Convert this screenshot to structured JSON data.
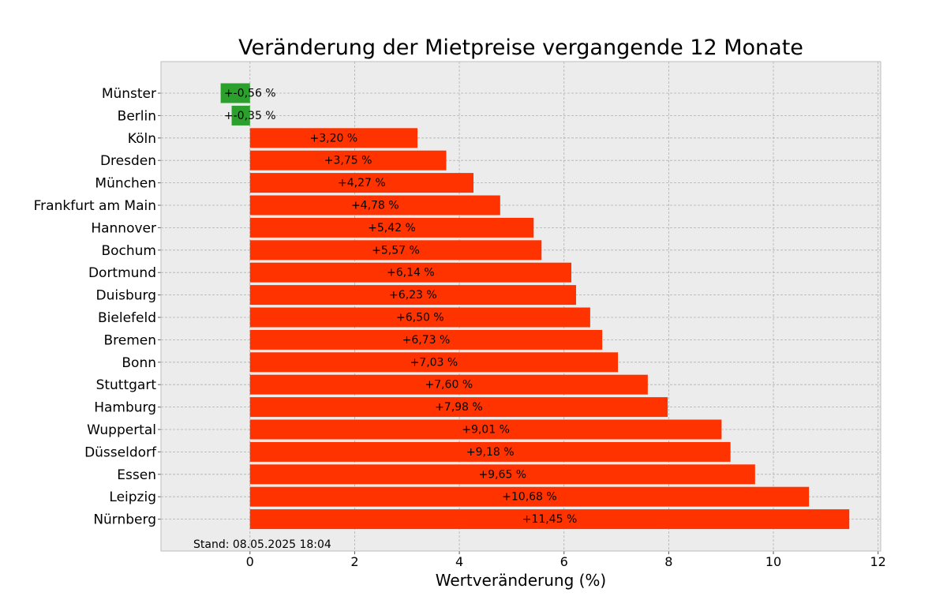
{
  "chart_data": {
    "type": "bar",
    "orientation": "horizontal",
    "title": "Veränderung der Mietpreise vergangende 12 Monate",
    "xlabel": "Wertveränderung (%)",
    "ylabel": "",
    "xlim": [
      -1.7,
      12.05
    ],
    "xticks": [
      0,
      2,
      4,
      6,
      8,
      10,
      12
    ],
    "grid": true,
    "footnote": "Stand: 08.05.2025 18:04",
    "colors": {
      "positive": "#ff3300",
      "negative": "#2ca02c",
      "plot_background": "#ececec",
      "grid": "#b0b0b0"
    },
    "bars": [
      {
        "category": "Münster",
        "value": -0.56,
        "label": "+-0,56 %"
      },
      {
        "category": "Berlin",
        "value": -0.35,
        "label": "+-0,35 %"
      },
      {
        "category": "Köln",
        "value": 3.2,
        "label": "+3,20 %"
      },
      {
        "category": "Dresden",
        "value": 3.75,
        "label": "+3,75 %"
      },
      {
        "category": "München",
        "value": 4.27,
        "label": "+4,27 %"
      },
      {
        "category": "Frankfurt am Main",
        "value": 4.78,
        "label": "+4,78 %"
      },
      {
        "category": "Hannover",
        "value": 5.42,
        "label": "+5,42 %"
      },
      {
        "category": "Bochum",
        "value": 5.57,
        "label": "+5,57 %"
      },
      {
        "category": "Dortmund",
        "value": 6.14,
        "label": "+6,14 %"
      },
      {
        "category": "Duisburg",
        "value": 6.23,
        "label": "+6,23 %"
      },
      {
        "category": "Bielefeld",
        "value": 6.5,
        "label": "+6,50 %"
      },
      {
        "category": "Bremen",
        "value": 6.73,
        "label": "+6,73 %"
      },
      {
        "category": "Bonn",
        "value": 7.03,
        "label": "+7,03 %"
      },
      {
        "category": "Stuttgart",
        "value": 7.6,
        "label": "+7,60 %"
      },
      {
        "category": "Hamburg",
        "value": 7.98,
        "label": "+7,98 %"
      },
      {
        "category": "Wuppertal",
        "value": 9.01,
        "label": "+9,01 %"
      },
      {
        "category": "Düsseldorf",
        "value": 9.18,
        "label": "+9,18 %"
      },
      {
        "category": "Essen",
        "value": 9.65,
        "label": "+9,65 %"
      },
      {
        "category": "Leipzig",
        "value": 10.68,
        "label": "+10,68 %"
      },
      {
        "category": "Nürnberg",
        "value": 11.45,
        "label": "+11,45 %"
      }
    ]
  }
}
